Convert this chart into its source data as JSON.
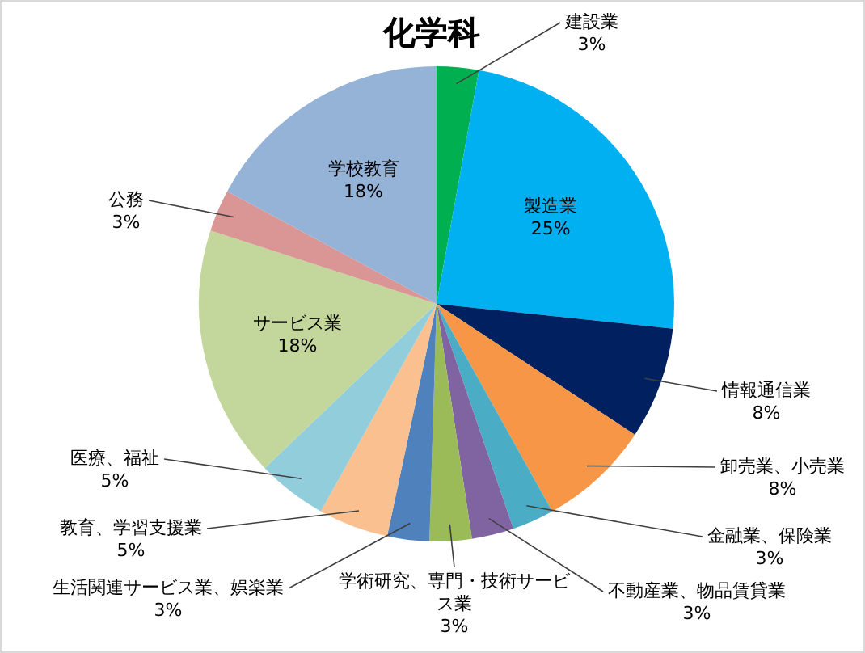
{
  "chart_data": {
    "type": "pie",
    "title": "化学科",
    "categories": [
      "建設業",
      "製造業",
      "情報通信業",
      "卸売業、小売業",
      "金融業、保険業",
      "不動産業、物品賃貸業",
      "学術研究、専門・技術サービス業",
      "生活関連サービス業、娯楽業",
      "教育、学習支援業",
      "医療、福祉",
      "サービス業",
      "公務",
      "学校教育"
    ],
    "values": [
      3,
      25,
      8,
      8,
      3,
      3,
      3,
      3,
      5,
      5,
      18,
      3,
      18
    ],
    "value_labels": [
      "3%",
      "25%",
      "8%",
      "8%",
      "3%",
      "3%",
      "3%",
      "3%",
      "5%",
      "5%",
      "18%",
      "3%",
      "18%"
    ],
    "colors": [
      "#00b050",
      "#00b0f0",
      "#002060",
      "#f79646",
      "#4bacc6",
      "#8064a2",
      "#9bbb59",
      "#4f81bd",
      "#fac090",
      "#92cddc",
      "#c3d69b",
      "#d99694",
      "#95b3d7"
    ],
    "legend": false
  }
}
